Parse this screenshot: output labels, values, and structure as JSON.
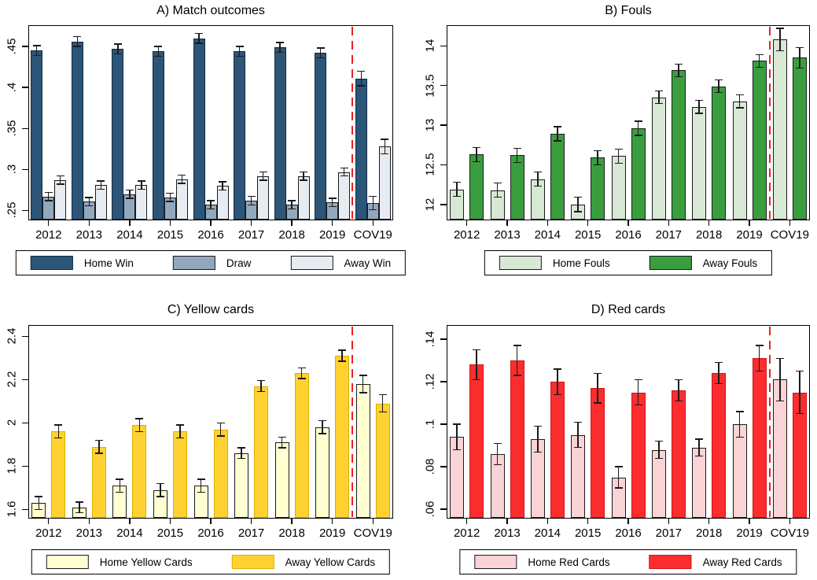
{
  "style": {
    "background": "#ffffff",
    "axis_color": "#000000",
    "error_bar_color": "#1a1a1a"
  },
  "chart_data": [
    {
      "type": "bar",
      "title": "A) Match outcomes",
      "categories": [
        "2012",
        "2013",
        "2014",
        "2015",
        "2016",
        "2017",
        "2018",
        "2019",
        "COV19"
      ],
      "series": [
        {
          "name": "Home Win",
          "color": "#2d5578",
          "border": "#10293f",
          "values": [
            0.445,
            0.456,
            0.447,
            0.444,
            0.46,
            0.444,
            0.449,
            0.442,
            0.411
          ],
          "errors": [
            0.006,
            0.006,
            0.006,
            0.006,
            0.006,
            0.006,
            0.006,
            0.006,
            0.009
          ]
        },
        {
          "name": "Draw",
          "color": "#92a8bd",
          "border": "#1a1a1a",
          "values": [
            0.267,
            0.261,
            0.27,
            0.266,
            0.257,
            0.262,
            0.257,
            0.26,
            0.259
          ],
          "errors": [
            0.005,
            0.005,
            0.005,
            0.005,
            0.005,
            0.005,
            0.005,
            0.005,
            0.008
          ]
        },
        {
          "name": "Away Win",
          "color": "#e6ecf1",
          "border": "#1a1a1a",
          "values": [
            0.287,
            0.281,
            0.281,
            0.288,
            0.28,
            0.292,
            0.292,
            0.297,
            0.328
          ],
          "errors": [
            0.005,
            0.005,
            0.005,
            0.005,
            0.005,
            0.005,
            0.005,
            0.005,
            0.009
          ]
        }
      ],
      "ylim": [
        0.238,
        0.476
      ],
      "yticks": [
        {
          "v": 0.25,
          "label": ".25"
        },
        {
          "v": 0.3,
          "label": ".3"
        },
        {
          "v": 0.35,
          "label": ".35"
        },
        {
          "v": 0.4,
          "label": ".4"
        },
        {
          "v": 0.45,
          "label": ".45"
        }
      ],
      "divider": {
        "between": [
          "2019",
          "COV19"
        ],
        "color": "#ed2024",
        "style": "dashed"
      },
      "grid": false,
      "legend_position": "bottom"
    },
    {
      "type": "bar",
      "title": "B) Fouls",
      "categories": [
        "2012",
        "2013",
        "2014",
        "2015",
        "2016",
        "2017",
        "2018",
        "2019",
        "COV19"
      ],
      "series": [
        {
          "name": "Home Fouls",
          "color": "#d7e8d4",
          "border": "#1a1a1a",
          "values": [
            12.19,
            12.18,
            12.32,
            12.0,
            12.61,
            13.35,
            13.23,
            13.3,
            14.08
          ],
          "errors": [
            0.09,
            0.09,
            0.09,
            0.09,
            0.09,
            0.08,
            0.08,
            0.08,
            0.14
          ]
        },
        {
          "name": "Away Fouls",
          "color": "#3a9e3f",
          "border": "#1a1a1a",
          "values": [
            12.63,
            12.62,
            12.89,
            12.59,
            12.96,
            13.69,
            13.49,
            13.81,
            13.85
          ],
          "errors": [
            0.09,
            0.09,
            0.09,
            0.09,
            0.09,
            0.08,
            0.08,
            0.08,
            0.13
          ]
        }
      ],
      "ylim": [
        11.8,
        14.26
      ],
      "yticks": [
        {
          "v": 12,
          "label": "12"
        },
        {
          "v": 12.5,
          "label": "12.5"
        },
        {
          "v": 13,
          "label": "13"
        },
        {
          "v": 13.5,
          "label": "13.5"
        },
        {
          "v": 14,
          "label": "14"
        }
      ],
      "divider": {
        "between": [
          "2019",
          "COV19"
        ],
        "color": "#ed2024",
        "style": "dashed"
      },
      "grid": false,
      "legend_position": "bottom"
    },
    {
      "type": "bar",
      "title": "C) Yellow cards",
      "categories": [
        "2012",
        "2013",
        "2014",
        "2015",
        "2016",
        "2017",
        "2018",
        "2019",
        "COV19"
      ],
      "series": [
        {
          "name": "Home Yellow Cards",
          "color": "#ffffd2",
          "border": "#1a1a1a",
          "values": [
            1.63,
            1.61,
            1.71,
            1.69,
            1.71,
            1.86,
            1.91,
            1.98,
            2.18
          ],
          "errors": [
            0.03,
            0.025,
            0.03,
            0.03,
            0.03,
            0.025,
            0.025,
            0.03,
            0.04
          ]
        },
        {
          "name": "Away Yellow Cards",
          "color": "#ffd231",
          "border": "#dcae00",
          "values": [
            1.96,
            1.89,
            1.99,
            1.96,
            1.97,
            2.17,
            2.23,
            2.31,
            2.09
          ],
          "errors": [
            0.03,
            0.03,
            0.03,
            0.03,
            0.03,
            0.025,
            0.025,
            0.025,
            0.04
          ]
        }
      ],
      "ylim": [
        1.558,
        2.452
      ],
      "yticks": [
        {
          "v": 1.6,
          "label": "1.6"
        },
        {
          "v": 1.8,
          "label": "1.8"
        },
        {
          "v": 2,
          "label": "2"
        },
        {
          "v": 2.2,
          "label": "2.2"
        },
        {
          "v": 2.4,
          "label": "2.4"
        }
      ],
      "divider": {
        "between": [
          "2019",
          "COV19"
        ],
        "color": "#ed2024",
        "style": "dashed"
      },
      "grid": false,
      "legend_position": "bottom"
    },
    {
      "type": "bar",
      "title": "D) Red cards",
      "categories": [
        "2012",
        "2013",
        "2014",
        "2015",
        "2016",
        "2017",
        "2018",
        "2019",
        "COV19"
      ],
      "series": [
        {
          "name": "Home Red Cards",
          "color": "#f9d3d5",
          "border": "#1a1a1a",
          "values": [
            0.094,
            0.086,
            0.093,
            0.095,
            0.075,
            0.088,
            0.089,
            0.1,
            0.121
          ],
          "errors": [
            0.006,
            0.005,
            0.006,
            0.006,
            0.005,
            0.004,
            0.004,
            0.006,
            0.01
          ]
        },
        {
          "name": "Away Red Cards",
          "color": "#fc2d2f",
          "border": "#d01215",
          "values": [
            0.128,
            0.13,
            0.12,
            0.117,
            0.115,
            0.116,
            0.124,
            0.131,
            0.115
          ],
          "errors": [
            0.007,
            0.007,
            0.006,
            0.007,
            0.006,
            0.005,
            0.005,
            0.006,
            0.01
          ]
        }
      ],
      "ylim": [
        0.0556,
        0.1467
      ],
      "yticks": [
        {
          "v": 0.06,
          "label": ".06"
        },
        {
          "v": 0.08,
          "label": ".08"
        },
        {
          "v": 0.1,
          "label": ".1"
        },
        {
          "v": 0.12,
          "label": ".12"
        },
        {
          "v": 0.14,
          "label": ".14"
        }
      ],
      "divider": {
        "between": [
          "2019",
          "COV19"
        ],
        "color": "#ed2024",
        "style": "dashed"
      },
      "grid": false,
      "legend_position": "bottom"
    }
  ]
}
